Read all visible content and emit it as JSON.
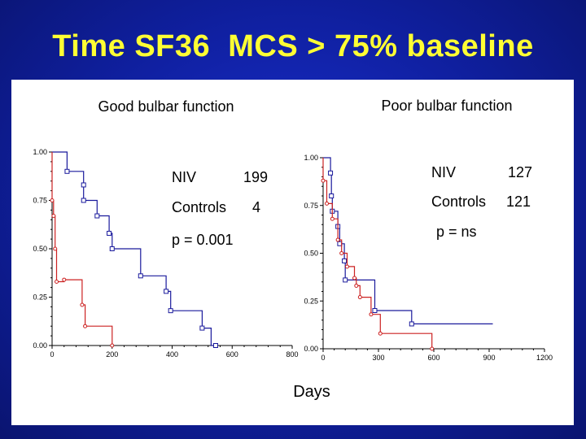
{
  "title": "Time SF36  MCS > 75% baseline",
  "shared_xlabel": "Days",
  "chart_data": [
    {
      "type": "line",
      "title": "Good bulbar function",
      "xlim": [
        0,
        800
      ],
      "ylim": [
        0,
        1
      ],
      "x_ticks": [
        "0",
        "200",
        "400",
        "600",
        "800"
      ],
      "y_ticks": [
        "0.00",
        "0.25",
        "0.50",
        "0.75",
        "1.00"
      ],
      "annotations": [
        "NIV",
        "199",
        "Controls",
        "4",
        "p = 0.001"
      ],
      "series": [
        {
          "name": "NIV",
          "color": "#1a1a9c",
          "marker": "square",
          "points": [
            [
              0,
              1.0
            ],
            [
              50,
              1.0
            ],
            [
              50,
              0.9
            ],
            [
              105,
              0.9
            ],
            [
              105,
              0.83
            ],
            [
              105,
              0.83
            ],
            [
              105,
              0.75
            ],
            [
              150,
              0.75
            ],
            [
              150,
              0.67
            ],
            [
              190,
              0.67
            ],
            [
              190,
              0.58
            ],
            [
              200,
              0.58
            ],
            [
              200,
              0.5
            ],
            [
              295,
              0.5
            ],
            [
              295,
              0.36
            ],
            [
              380,
              0.36
            ],
            [
              380,
              0.28
            ],
            [
              395,
              0.28
            ],
            [
              395,
              0.18
            ],
            [
              500,
              0.18
            ],
            [
              500,
              0.09
            ],
            [
              530,
              0.09
            ],
            [
              530,
              0.0
            ],
            [
              545,
              0.0
            ]
          ],
          "markers": [
            [
              50,
              0.9
            ],
            [
              105,
              0.83
            ],
            [
              105,
              0.75
            ],
            [
              150,
              0.67
            ],
            [
              190,
              0.58
            ],
            [
              200,
              0.5
            ],
            [
              295,
              0.36
            ],
            [
              380,
              0.28
            ],
            [
              395,
              0.18
            ],
            [
              500,
              0.09
            ],
            [
              545,
              0.0
            ]
          ]
        },
        {
          "name": "Controls",
          "color": "#cc2222",
          "marker": "circle",
          "points": [
            [
              0,
              1.0
            ],
            [
              0,
              0.75
            ],
            [
              5,
              0.75
            ],
            [
              5,
              0.67
            ],
            [
              10,
              0.67
            ],
            [
              10,
              0.5
            ],
            [
              15,
              0.5
            ],
            [
              15,
              0.33
            ],
            [
              40,
              0.33
            ],
            [
              40,
              0.34
            ],
            [
              100,
              0.34
            ],
            [
              100,
              0.21
            ],
            [
              110,
              0.21
            ],
            [
              110,
              0.1
            ],
            [
              200,
              0.1
            ],
            [
              200,
              0.0
            ]
          ],
          "markers": [
            [
              0,
              0.75
            ],
            [
              5,
              0.67
            ],
            [
              10,
              0.5
            ],
            [
              15,
              0.33
            ],
            [
              40,
              0.34
            ],
            [
              100,
              0.21
            ],
            [
              110,
              0.1
            ],
            [
              200,
              0.0
            ]
          ]
        }
      ]
    },
    {
      "type": "line",
      "title": "Poor bulbar function",
      "xlim": [
        0,
        1200
      ],
      "ylim": [
        0,
        1
      ],
      "x_ticks": [
        "0",
        "300",
        "600",
        "900",
        "1200"
      ],
      "y_ticks": [
        "0.00",
        "0.25",
        "0.50",
        "0.75",
        "1.00"
      ],
      "annotations": [
        "NIV",
        "127",
        "Controls",
        "121",
        "p = ns"
      ],
      "series": [
        {
          "name": "NIV",
          "color": "#1a1a9c",
          "marker": "square",
          "points": [
            [
              0,
              1.0
            ],
            [
              40,
              1.0
            ],
            [
              40,
              0.92
            ],
            [
              45,
              0.92
            ],
            [
              45,
              0.8
            ],
            [
              50,
              0.8
            ],
            [
              50,
              0.72
            ],
            [
              80,
              0.72
            ],
            [
              80,
              0.64
            ],
            [
              90,
              0.64
            ],
            [
              90,
              0.55
            ],
            [
              115,
              0.55
            ],
            [
              115,
              0.46
            ],
            [
              115,
              0.46
            ],
            [
              120,
              0.46
            ],
            [
              120,
              0.36
            ],
            [
              280,
              0.36
            ],
            [
              280,
              0.2
            ],
            [
              480,
              0.2
            ],
            [
              480,
              0.13
            ],
            [
              920,
              0.13
            ]
          ],
          "markers": [
            [
              40,
              0.92
            ],
            [
              45,
              0.8
            ],
            [
              50,
              0.72
            ],
            [
              80,
              0.64
            ],
            [
              90,
              0.55
            ],
            [
              115,
              0.46
            ],
            [
              120,
              0.36
            ],
            [
              280,
              0.2
            ],
            [
              480,
              0.13
            ]
          ]
        },
        {
          "name": "Controls",
          "color": "#cc2222",
          "marker": "circle",
          "points": [
            [
              0,
              1.0
            ],
            [
              0,
              0.88
            ],
            [
              20,
              0.88
            ],
            [
              20,
              0.76
            ],
            [
              50,
              0.76
            ],
            [
              50,
              0.68
            ],
            [
              80,
              0.68
            ],
            [
              80,
              0.57
            ],
            [
              100,
              0.57
            ],
            [
              100,
              0.5
            ],
            [
              130,
              0.5
            ],
            [
              130,
              0.43
            ],
            [
              170,
              0.43
            ],
            [
              170,
              0.37
            ],
            [
              180,
              0.37
            ],
            [
              180,
              0.33
            ],
            [
              200,
              0.33
            ],
            [
              200,
              0.27
            ],
            [
              260,
              0.27
            ],
            [
              260,
              0.18
            ],
            [
              310,
              0.18
            ],
            [
              310,
              0.08
            ],
            [
              590,
              0.08
            ],
            [
              590,
              0.0
            ]
          ],
          "markers": [
            [
              0,
              0.88
            ],
            [
              20,
              0.76
            ],
            [
              50,
              0.68
            ],
            [
              80,
              0.57
            ],
            [
              100,
              0.5
            ],
            [
              130,
              0.43
            ],
            [
              170,
              0.37
            ],
            [
              180,
              0.33
            ],
            [
              200,
              0.27
            ],
            [
              260,
              0.18
            ],
            [
              310,
              0.08
            ],
            [
              590,
              0.0
            ]
          ]
        }
      ]
    }
  ]
}
